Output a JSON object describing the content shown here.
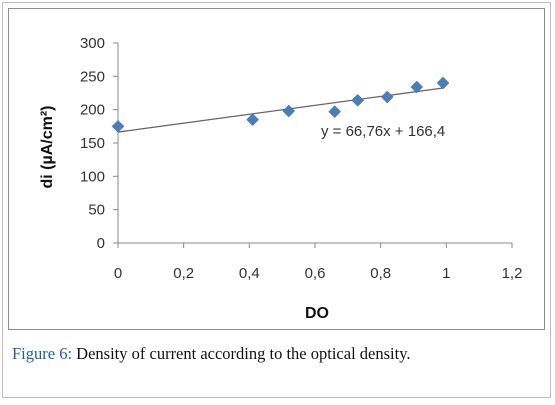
{
  "caption": {
    "label": "Figure 6:",
    "text": " Density of current according to the optical density."
  },
  "chart_data": {
    "type": "scatter",
    "xlabel": "DO",
    "ylabel": "di (µA/cm²)",
    "xlim": [
      0,
      1.2
    ],
    "ylim": [
      0,
      300
    ],
    "x_ticks": [
      0,
      0.2,
      0.4,
      0.6,
      0.8,
      1,
      1.2
    ],
    "x_tick_labels": [
      "0",
      "0,2",
      "0,4",
      "0,6",
      "0,8",
      "1",
      "1,2"
    ],
    "y_ticks": [
      0,
      50,
      100,
      150,
      200,
      250,
      300
    ],
    "y_tick_labels": [
      "0",
      "50",
      "100",
      "150",
      "200",
      "250",
      "300"
    ],
    "grid": false,
    "marker": "diamond",
    "marker_color": "#4a7ebb",
    "trendline_color": "#666666",
    "points": [
      {
        "x": 0,
        "y": 175
      },
      {
        "x": 0.41,
        "y": 185
      },
      {
        "x": 0.52,
        "y": 198
      },
      {
        "x": 0.66,
        "y": 197
      },
      {
        "x": 0.73,
        "y": 214
      },
      {
        "x": 0.82,
        "y": 219
      },
      {
        "x": 0.91,
        "y": 234
      },
      {
        "x": 0.99,
        "y": 240
      }
    ],
    "trendline": {
      "slope": 66.76,
      "intercept": 166.4,
      "x_range": [
        0,
        0.99
      ]
    },
    "equation": "y = 66,76x + 166,4"
  }
}
